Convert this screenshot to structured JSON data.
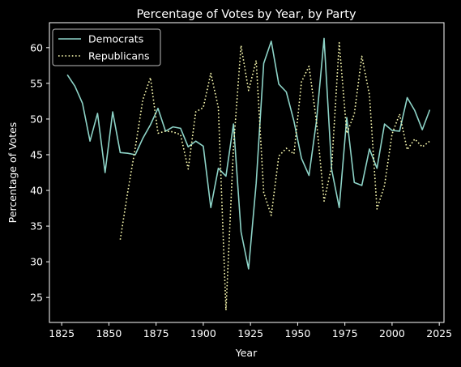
{
  "chart_data": {
    "type": "line",
    "title": "Percentage of Votes by Year, by Party",
    "xlabel": "Year",
    "ylabel": "Percentage of Votes",
    "xlim": [
      1818.5,
      2027.5
    ],
    "ylim": [
      21.5,
      63.5
    ],
    "xticks": [
      1825,
      1850,
      1875,
      1900,
      1925,
      1950,
      1975,
      2000,
      2025
    ],
    "yticks": [
      25,
      30,
      35,
      40,
      45,
      50,
      55,
      60
    ],
    "grid": false,
    "legend_position": "top-left",
    "background_color": "#000000",
    "foreground_color": "#ffffff",
    "series": [
      {
        "name": "Democrats",
        "color": "#8dd3c7",
        "line_style": "solid",
        "x": [
          1828,
          1832,
          1836,
          1840,
          1844,
          1848,
          1852,
          1856,
          1860,
          1864,
          1868,
          1872,
          1876,
          1880,
          1884,
          1888,
          1892,
          1896,
          1900,
          1904,
          1908,
          1912,
          1916,
          1920,
          1924,
          1928,
          1932,
          1936,
          1940,
          1944,
          1948,
          1952,
          1956,
          1960,
          1964,
          1968,
          1972,
          1976,
          1980,
          1984,
          1988,
          1992,
          1996,
          2000,
          2004,
          2008,
          2012,
          2016,
          2020
        ],
        "y": [
          56.2,
          54.6,
          52.2,
          46.9,
          50.8,
          42.5,
          51.0,
          45.3,
          45.2,
          45.0,
          47.3,
          49.2,
          51.5,
          48.3,
          48.9,
          48.7,
          46.1,
          46.9,
          46.2,
          37.6,
          43.1,
          42.0,
          49.3,
          34.2,
          29.0,
          41.0,
          57.8,
          60.9,
          54.9,
          53.8,
          49.7,
          44.5,
          42.1,
          49.8,
          61.3,
          42.9,
          37.6,
          50.2,
          41.1,
          40.7,
          45.8,
          43.1,
          49.3,
          48.4,
          48.3,
          53.0,
          51.2,
          48.5,
          51.3
        ]
      },
      {
        "name": "Republicans",
        "color": "#ffffb3",
        "line_style": "dotted",
        "x": [
          1856,
          1860,
          1864,
          1868,
          1872,
          1876,
          1880,
          1884,
          1888,
          1892,
          1896,
          1900,
          1904,
          1908,
          1912,
          1916,
          1920,
          1924,
          1928,
          1932,
          1936,
          1940,
          1944,
          1948,
          1952,
          1956,
          1960,
          1964,
          1968,
          1972,
          1976,
          1980,
          1984,
          1988,
          1992,
          1996,
          2000,
          2004,
          2008,
          2012,
          2016,
          2020
        ],
        "y": [
          33.1,
          39.8,
          46.0,
          52.7,
          55.8,
          48.0,
          48.3,
          48.2,
          47.8,
          43.0,
          51.0,
          51.6,
          56.4,
          51.6,
          23.2,
          46.1,
          60.3,
          54.0,
          58.2,
          39.7,
          36.5,
          44.8,
          45.9,
          45.1,
          55.2,
          57.4,
          49.6,
          38.5,
          43.4,
          60.7,
          48.0,
          50.7,
          58.8,
          53.4,
          37.4,
          40.7,
          47.9,
          50.7,
          45.7,
          47.2,
          46.1,
          46.9
        ]
      }
    ]
  }
}
